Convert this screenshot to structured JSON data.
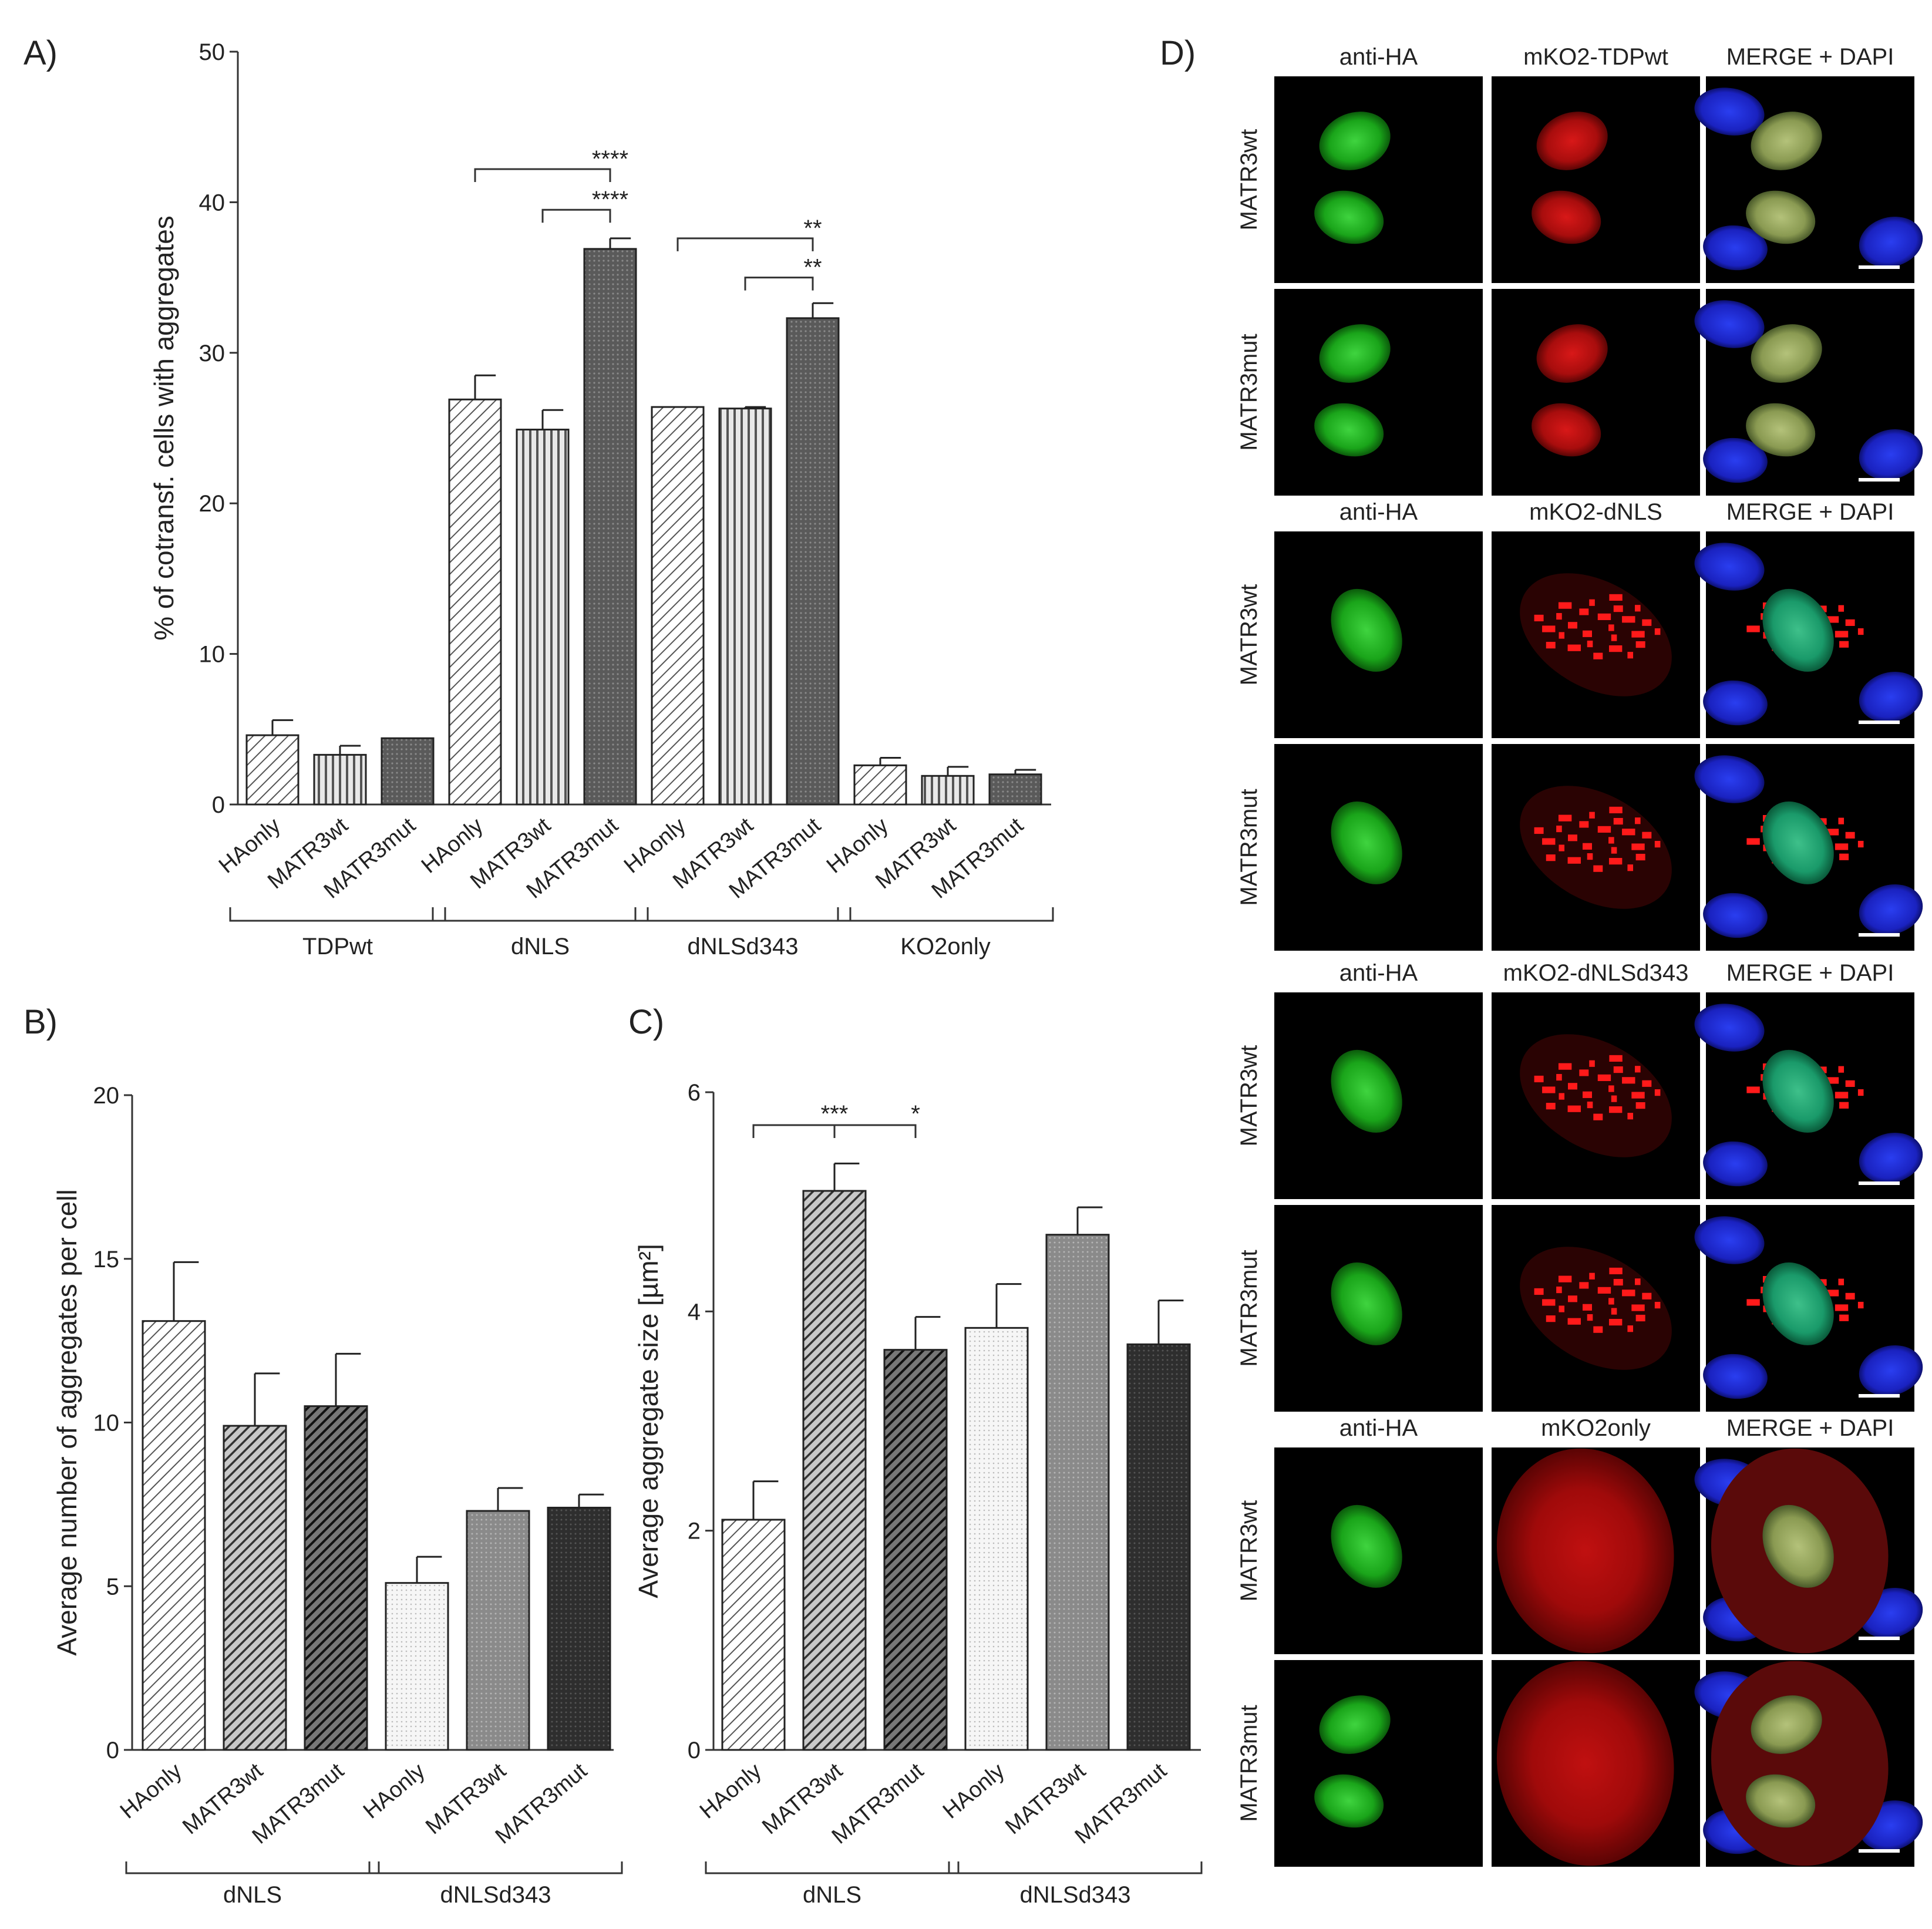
{
  "chart_data": [
    {
      "panel": "A)",
      "type": "bar",
      "ylabel": "% of cotransf. cells with aggregates",
      "ylim": [
        0,
        50
      ],
      "yticks": [
        0,
        10,
        20,
        30,
        40,
        50
      ],
      "bars": [
        {
          "label": "HAonly",
          "group": "TDPwt",
          "value": 4.6,
          "error": 1.0,
          "pattern": "diag"
        },
        {
          "label": "MATR3wt",
          "group": "TDPwt",
          "value": 3.3,
          "error": 0.6,
          "pattern": "vert"
        },
        {
          "label": "MATR3mut",
          "group": "TDPwt",
          "value": 4.4,
          "error": 0.0,
          "pattern": "dots"
        },
        {
          "label": "HAonly",
          "group": "dNLS",
          "value": 26.9,
          "error": 1.6,
          "pattern": "diag"
        },
        {
          "label": "MATR3wt",
          "group": "dNLS",
          "value": 24.9,
          "error": 1.3,
          "pattern": "vert"
        },
        {
          "label": "MATR3mut",
          "group": "dNLS",
          "value": 36.9,
          "error": 0.7,
          "pattern": "dots"
        },
        {
          "label": "HAonly",
          "group": "dNLSd343",
          "value": 26.4,
          "error": 0.0,
          "pattern": "diag"
        },
        {
          "label": "MATR3wt",
          "group": "dNLSd343",
          "value": 26.3,
          "error": 0.1,
          "pattern": "vert"
        },
        {
          "label": "MATR3mut",
          "group": "dNLSd343",
          "value": 32.3,
          "error": 1.0,
          "pattern": "dots"
        },
        {
          "label": "HAonly",
          "group": "KO2only",
          "value": 2.6,
          "error": 0.5,
          "pattern": "diag"
        },
        {
          "label": "MATR3wt",
          "group": "KO2only",
          "value": 1.9,
          "error": 0.6,
          "pattern": "vert"
        },
        {
          "label": "MATR3mut",
          "group": "KO2only",
          "value": 2.0,
          "error": 0.3,
          "pattern": "dots"
        }
      ],
      "groups": [
        "TDPwt",
        "dNLS",
        "dNLSd343",
        "KO2only"
      ],
      "significance": [
        {
          "from": 3,
          "to": 5,
          "y": 42.2,
          "label": "****"
        },
        {
          "from": 4,
          "to": 5,
          "y": 39.5,
          "label": "****"
        },
        {
          "from": 6,
          "to": 8,
          "y": 37.6,
          "label": "**"
        },
        {
          "from": 7,
          "to": 8,
          "y": 35.0,
          "label": "**"
        }
      ]
    },
    {
      "panel": "B)",
      "type": "bar",
      "ylabel": "Average number of aggregates per cell",
      "ylim": [
        0,
        20
      ],
      "yticks": [
        0,
        5,
        10,
        15,
        20
      ],
      "bars": [
        {
          "label": "HAonly",
          "group": "dNLS",
          "value": 13.1,
          "error": 1.8,
          "pattern": "diag"
        },
        {
          "label": "MATR3wt",
          "group": "dNLS",
          "value": 9.9,
          "error": 1.6,
          "pattern": "diagdark"
        },
        {
          "label": "MATR3mut",
          "group": "dNLS",
          "value": 10.5,
          "error": 1.6,
          "pattern": "diagblack"
        },
        {
          "label": "HAonly",
          "group": "dNLSd343",
          "value": 5.1,
          "error": 0.8,
          "pattern": "dotslight"
        },
        {
          "label": "MATR3wt",
          "group": "dNLSd343",
          "value": 7.3,
          "error": 0.7,
          "pattern": "dotsgray"
        },
        {
          "label": "MATR3mut",
          "group": "dNLSd343",
          "value": 7.4,
          "error": 0.4,
          "pattern": "dotsdark"
        }
      ],
      "groups": [
        "dNLS",
        "dNLSd343"
      ],
      "significance": []
    },
    {
      "panel": "C)",
      "type": "bar",
      "ylabel": "Average aggregate size [µm²]",
      "ylim": [
        0,
        6
      ],
      "yticks": [
        0,
        2,
        4,
        6
      ],
      "bars": [
        {
          "label": "HAonly",
          "group": "dNLS",
          "value": 2.1,
          "error": 0.35,
          "pattern": "diag"
        },
        {
          "label": "MATR3wt",
          "group": "dNLS",
          "value": 5.1,
          "error": 0.25,
          "pattern": "diagdark"
        },
        {
          "label": "MATR3mut",
          "group": "dNLS",
          "value": 3.65,
          "error": 0.3,
          "pattern": "diagblack"
        },
        {
          "label": "HAonly",
          "group": "dNLSd343",
          "value": 3.85,
          "error": 0.4,
          "pattern": "dotslight"
        },
        {
          "label": "MATR3wt",
          "group": "dNLSd343",
          "value": 4.7,
          "error": 0.25,
          "pattern": "dotsgray"
        },
        {
          "label": "MATR3mut",
          "group": "dNLSd343",
          "value": 3.7,
          "error": 0.4,
          "pattern": "dotsdark"
        }
      ],
      "groups": [
        "dNLS",
        "dNLSd343"
      ],
      "significance": [
        {
          "from": 0,
          "to": 2,
          "y": 5.7,
          "marks": [
            {
              "at": 1,
              "label": "***"
            },
            {
              "at": 2,
              "label": "*"
            }
          ]
        }
      ]
    }
  ],
  "microscopy": {
    "panel": "D)",
    "blocks": [
      {
        "columns": [
          "anti-HA",
          "mKO2-TDPwt",
          "MERGE + DAPI"
        ],
        "rows": [
          "MATR3wt",
          "MATR3mut"
        ],
        "kind": "tdp"
      },
      {
        "columns": [
          "anti-HA",
          "mKO2-dNLS",
          "MERGE + DAPI"
        ],
        "rows": [
          "MATR3wt",
          "MATR3mut"
        ],
        "kind": "dnls"
      },
      {
        "columns": [
          "anti-HA",
          "mKO2-dNLSd343",
          "MERGE + DAPI"
        ],
        "rows": [
          "MATR3wt",
          "MATR3mut"
        ],
        "kind": "dnlsd"
      },
      {
        "columns": [
          "anti-HA",
          "mKO2only",
          "MERGE + DAPI"
        ],
        "rows": [
          "MATR3wt",
          "MATR3mut"
        ],
        "kind": "ko2"
      }
    ]
  }
}
